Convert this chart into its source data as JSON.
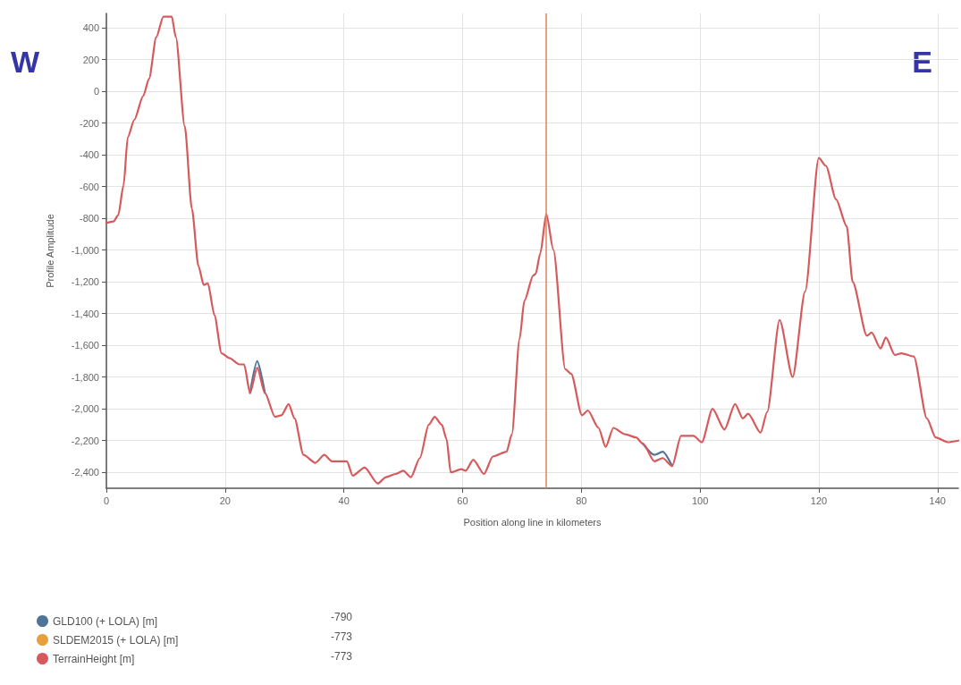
{
  "chart_data": {
    "type": "line",
    "xlabel": "Position along line in kilometers",
    "ylabel": "Profile Amplitude",
    "x": [
      0,
      1.2,
      2.0,
      2.9,
      3.6,
      4.7,
      6.2,
      7.2,
      8.4,
      9.6,
      11.0,
      11.7,
      13.2,
      14.4,
      15.5,
      16.4,
      17.1,
      18.2,
      19.4,
      20.7,
      22.4,
      23.2,
      24.2,
      25.4,
      26.7,
      28.4,
      29.5,
      30.7,
      31.7,
      33.2,
      35.2,
      36.7,
      38.0,
      40.5,
      41.5,
      43.5,
      45.7,
      47.1,
      48.7,
      50.0,
      51.3,
      52.8,
      54.3,
      55.3,
      56.5,
      57.3,
      58.0,
      59.8,
      60.5,
      61.8,
      63.6,
      65.1,
      67.4,
      68.3,
      69.6,
      70.4,
      71.9,
      72.3,
      73.1,
      74.1,
      75.3,
      77.3,
      78.3,
      80.1,
      81.1,
      82.9,
      84.1,
      85.4,
      87.4,
      89.2,
      90.4,
      92.3,
      93.7,
      95.3,
      96.8,
      98.9,
      100.3,
      102.1,
      104.1,
      105.9,
      107.2,
      108.1,
      110.2,
      111.3,
      113.4,
      115.6,
      117.7,
      120.0,
      121.2,
      122.9,
      124.7,
      125.7,
      128.1,
      128.9,
      130.4,
      131.3,
      132.8,
      133.9,
      136.0,
      138.2,
      139.7,
      141.7,
      143.5
    ],
    "series": [
      {
        "name": "GLD100 (+ LOLA) [m]",
        "color": "#4f7497",
        "values": [
          null,
          null,
          null,
          null,
          null,
          null,
          null,
          null,
          null,
          null,
          null,
          null,
          null,
          null,
          null,
          null,
          null,
          null,
          null,
          null,
          null,
          null,
          -1900,
          -1700,
          -1900,
          null,
          null,
          null,
          null,
          null,
          null,
          null,
          null,
          null,
          null,
          null,
          null,
          null,
          null,
          null,
          null,
          null,
          null,
          null,
          null,
          null,
          null,
          null,
          null,
          null,
          null,
          null,
          null,
          null,
          null,
          null,
          null,
          null,
          null,
          null,
          null,
          null,
          null,
          null,
          null,
          null,
          null,
          null,
          null,
          null,
          -2220,
          -2290,
          -2270,
          -2360,
          null,
          null,
          null,
          null,
          null,
          null,
          null,
          null,
          null,
          null,
          null,
          null,
          null,
          null,
          null,
          null,
          null,
          null,
          null,
          null,
          null,
          null,
          null,
          null,
          null,
          null,
          null,
          null,
          null
        ]
      },
      {
        "name": "SLDEM2015 (+ LOLA) [m]",
        "color": "#e8a03c",
        "values": [
          null,
          null,
          null,
          null,
          null,
          null,
          null,
          null,
          null,
          null,
          null,
          null,
          null,
          null,
          null,
          null,
          null,
          null,
          null,
          null,
          null,
          null,
          null,
          null,
          null,
          null,
          null,
          null,
          null,
          null,
          null,
          null,
          null,
          null,
          null,
          null,
          null,
          null,
          null,
          null,
          null,
          null,
          null,
          null,
          null,
          null,
          null,
          null,
          null,
          null,
          null,
          null,
          null,
          null,
          null,
          null,
          null,
          null,
          null,
          null,
          null,
          null,
          null,
          null,
          null,
          null,
          null,
          null,
          null,
          null,
          null,
          null,
          null,
          null,
          null,
          null,
          null,
          null,
          null,
          null,
          null,
          null,
          null,
          null,
          null,
          null,
          null,
          null,
          null,
          null,
          null,
          null,
          null,
          null,
          null,
          null,
          null,
          null,
          null,
          null,
          null,
          null,
          null
        ]
      },
      {
        "name": "TerrainHeight [m]",
        "color": "#d65a5c",
        "values": [
          -830,
          -820,
          -780,
          -590,
          -290,
          -180,
          -30,
          80,
          340,
          470,
          470,
          340,
          -220,
          -740,
          -1100,
          -1220,
          -1210,
          -1410,
          -1650,
          -1680,
          -1720,
          -1720,
          -1900,
          -1740,
          -1900,
          -2050,
          -2040,
          -1970,
          -2060,
          -2290,
          -2340,
          -2290,
          -2330,
          -2330,
          -2420,
          -2370,
          -2470,
          -2430,
          -2410,
          -2390,
          -2430,
          -2310,
          -2100,
          -2050,
          -2100,
          -2190,
          -2400,
          -2380,
          -2390,
          -2320,
          -2410,
          -2300,
          -2270,
          -2160,
          -1560,
          -1320,
          -1160,
          -1150,
          -1020,
          -773,
          -1000,
          -1750,
          -1780,
          -2040,
          -2010,
          -2120,
          -2240,
          -2120,
          -2160,
          -2180,
          -2220,
          -2330,
          -2310,
          -2360,
          -2170,
          -2170,
          -2210,
          -2000,
          -2130,
          -1970,
          -2060,
          -2030,
          -2150,
          -2020,
          -1440,
          -1800,
          -1260,
          -420,
          -470,
          -680,
          -850,
          -1200,
          -1540,
          -1520,
          -1620,
          -1550,
          -1660,
          -1650,
          -1670,
          -2060,
          -2180,
          -2210,
          -2200
        ]
      }
    ],
    "xlim": [
      0,
      143.5
    ],
    "xticks": [
      0,
      20,
      40,
      60,
      80,
      100,
      120,
      140
    ],
    "ylim": [
      -2500,
      490
    ],
    "yticks": [
      {
        "value": -2400,
        "label": "-2,400"
      },
      {
        "value": -2200,
        "label": "-2,200"
      },
      {
        "value": -2000,
        "label": "-2,000"
      },
      {
        "value": -1800,
        "label": "-1,800"
      },
      {
        "value": -1600,
        "label": "-1,600"
      },
      {
        "value": -1400,
        "label": "-1,400"
      },
      {
        "value": -1200,
        "label": "-1,200"
      },
      {
        "value": -1000,
        "label": "-1,000"
      },
      -800,
      -600,
      -400,
      -200,
      0,
      200,
      400
    ],
    "ref_lines": [
      {
        "axis": "x",
        "value": 74.1,
        "color": "#e0805e"
      }
    ],
    "annotations": [
      "W",
      "E",
      "-790",
      "-773",
      "-773"
    ],
    "grid": true,
    "legend": "bottom left",
    "marker": "none",
    "line_style": "solid"
  }
}
